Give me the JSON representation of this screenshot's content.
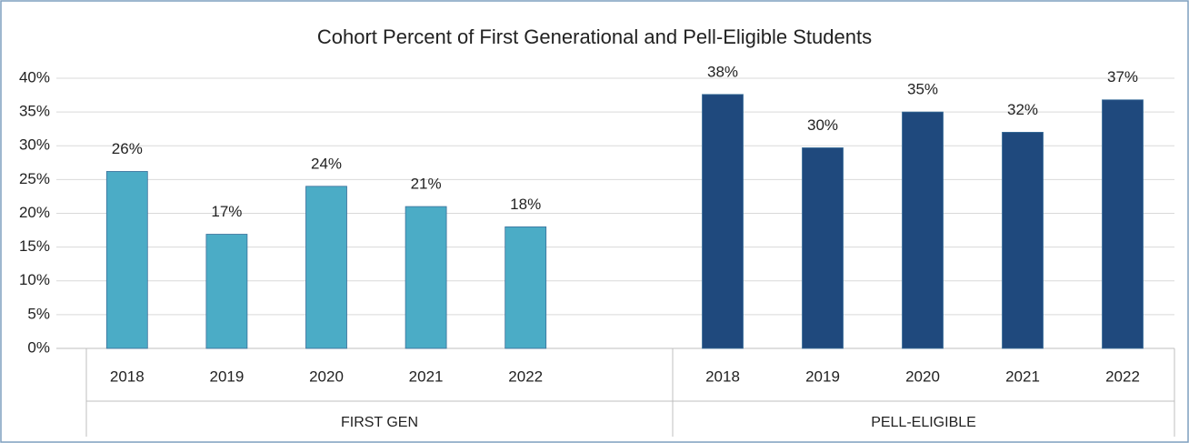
{
  "chart_data": {
    "type": "bar",
    "title": "Cohort Percent of First Generational and Pell-Eligible Students",
    "ylim": [
      0,
      40
    ],
    "yticks": [
      {
        "value": 0,
        "label": "0%"
      },
      {
        "value": 5,
        "label": "5%"
      },
      {
        "value": 10,
        "label": "10%"
      },
      {
        "value": 15,
        "label": "15%"
      },
      {
        "value": 20,
        "label": "20%"
      },
      {
        "value": 25,
        "label": "25%"
      },
      {
        "value": 30,
        "label": "30%"
      },
      {
        "value": 35,
        "label": "35%"
      },
      {
        "value": 40,
        "label": "40%"
      }
    ],
    "grid": true,
    "groups": [
      {
        "name": "FIRST GEN",
        "color": "#4bacc6",
        "categories": [
          "2018",
          "2019",
          "2020",
          "2021",
          "2022"
        ],
        "values": [
          26.2,
          16.9,
          24,
          21,
          18
        ],
        "value_labels": [
          "26%",
          "17%",
          "24%",
          "21%",
          "18%"
        ]
      },
      {
        "name": "PELL-ELIGIBLE",
        "color": "#1f497d",
        "categories": [
          "2018",
          "2019",
          "2020",
          "2021",
          "2022"
        ],
        "values": [
          37.6,
          29.7,
          35,
          32,
          36.8
        ],
        "value_labels": [
          "38%",
          "30%",
          "35%",
          "32%",
          "37%"
        ]
      }
    ]
  }
}
